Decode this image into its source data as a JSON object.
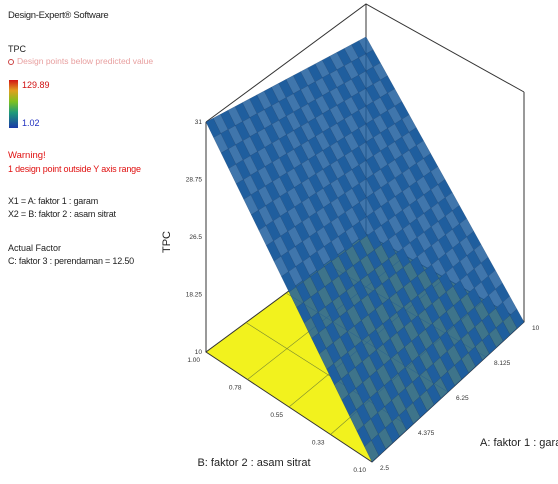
{
  "software": "Design-Expert® Software",
  "legend": {
    "response": "TPC",
    "design_points_note": "Design points below predicted value",
    "max": "129.89",
    "min": "1.02"
  },
  "warning": {
    "title": "Warning!",
    "text": "1 design point outside Y axis range"
  },
  "factors": {
    "x1": "X1 = A: faktor 1 : garam",
    "x2": "X2 = B: faktor 2 : asam sitrat"
  },
  "actual_factor": {
    "label": "Actual Factor",
    "value": "C: faktor 3 : perendaman = 12.50"
  },
  "colors": {
    "surface": "#1f5e9e",
    "floor": "#f2f21e",
    "scale_top": "#d21414",
    "scale_bottom": "#1a3aa8"
  },
  "chart_data": {
    "type": "surface",
    "zlabel": "TPC",
    "xlabel": "A: faktor 1 : garam",
    "ylabel": "B: faktor 2 : asam sitrat",
    "x_ticks": [
      "2.5",
      "4.375",
      "6.25",
      "8.125",
      "10"
    ],
    "y_ticks": [
      "0.10",
      "0.33",
      "0.55",
      "0.78",
      "1.00"
    ],
    "z_ticks": [
      "10",
      "18.25",
      "26.5",
      "28.75",
      "31"
    ],
    "zlim": [
      10,
      31
    ],
    "surface_corners": {
      "a_low_b_low": 10,
      "a_low_b_high": 31,
      "a_high_b_low": 10,
      "a_high_b_high": 28
    }
  }
}
